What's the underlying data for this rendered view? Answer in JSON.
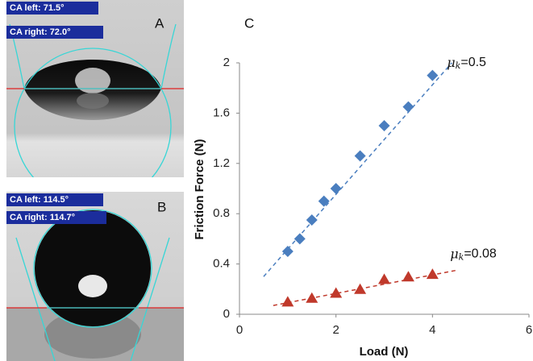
{
  "photos": [
    {
      "label": "A",
      "ca_left": "CA left: 71.5°",
      "ca_right": "CA right: 72.0°"
    },
    {
      "label": "B",
      "ca_left": "CA left: 114.5°",
      "ca_right": "CA right: 114.7°"
    }
  ],
  "chart_data": {
    "type": "scatter",
    "panel_label": "C",
    "x_label": "Load (N)",
    "y_label": "Friction Force (N)",
    "xlim": [
      0,
      6
    ],
    "xticks": [
      0,
      2,
      4,
      6
    ],
    "ylim": [
      0,
      2
    ],
    "yticks": [
      0,
      0.4,
      0.8,
      1.2,
      1.6,
      2
    ],
    "series": [
      {
        "color": "#4a7ebf",
        "marker": "diamond",
        "x": [
          1,
          1.25,
          1.5,
          1.75,
          2,
          2.5,
          3,
          3.5,
          4
        ],
        "values": [
          0.5,
          0.6,
          0.75,
          0.9,
          1.0,
          1.26,
          1.5,
          1.65,
          1.9
        ],
        "trend_x": [
          0.5,
          4.4
        ],
        "trend_y": [
          0.3,
          2.0
        ],
        "annotation": {
          "symbol": "μ",
          "subscript": "k",
          "text": "=0.5"
        }
      },
      {
        "color": "#c0392b",
        "marker": "triangle",
        "x": [
          1,
          1.5,
          2,
          2.5,
          3,
          3.5,
          4
        ],
        "values": [
          0.1,
          0.13,
          0.17,
          0.2,
          0.28,
          0.3,
          0.32
        ],
        "trend_x": [
          0.7,
          4.5
        ],
        "trend_y": [
          0.07,
          0.35
        ],
        "annotation": {
          "symbol": "μ",
          "subscript": "k",
          "text": "=0.08"
        }
      }
    ]
  }
}
